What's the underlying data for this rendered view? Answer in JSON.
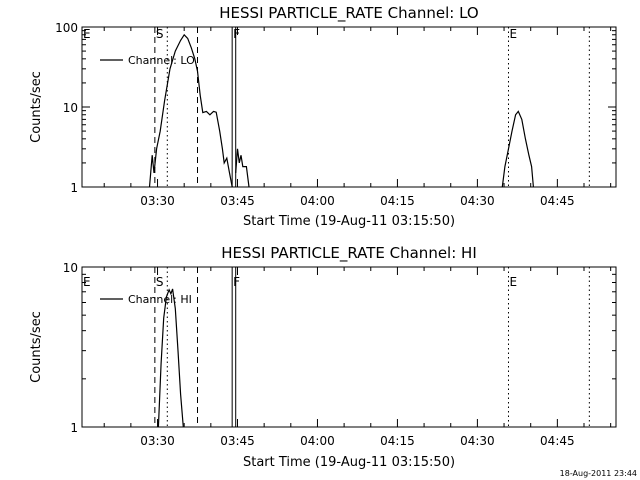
{
  "stamp": "18-Aug-2011 23:44",
  "chart_data": [
    {
      "type": "line",
      "title": "HESSI PARTICLE_RATE Channel: LO",
      "xlabel": "Start Time (19-Aug-11 03:15:50)",
      "ylabel": "Counts/sec",
      "yscale": "log",
      "ylim": [
        1,
        100
      ],
      "xlim": [
        "03:15:50",
        "04:56:00"
      ],
      "xticks": [
        "03:30",
        "03:45",
        "04:00",
        "04:15",
        "04:30",
        "04:45"
      ],
      "yticks": [
        "1",
        "10",
        "100"
      ],
      "legend": {
        "label": "Channel: LO",
        "position": "top-left"
      },
      "markers": [
        {
          "label": "E",
          "time": "03:15:50",
          "style": "none"
        },
        {
          "label": "S",
          "time": "03:29:30",
          "style": "dashed"
        },
        {
          "label": "",
          "time": "03:31:50",
          "style": "dotted"
        },
        {
          "label": "",
          "time": "03:37:30",
          "style": "dashed"
        },
        {
          "label": "F",
          "time": "03:44:00",
          "style": "solid"
        },
        {
          "label": "",
          "time": "03:44:40",
          "style": "solid"
        },
        {
          "label": "E",
          "time": "04:35:50",
          "style": "dotted"
        },
        {
          "label": "",
          "time": "04:51:00",
          "style": "dotted"
        }
      ],
      "series": [
        {
          "segments": [
            [
              [
                "03:28:30",
                1.0
              ],
              [
                "03:29:00",
                2.5
              ],
              [
                "03:29:20",
                1.5
              ],
              [
                "03:29:50",
                3.0
              ],
              [
                "03:30:30",
                5.0
              ],
              [
                "03:31:20",
                12
              ],
              [
                "03:32:20",
                30
              ],
              [
                "03:33:20",
                50
              ],
              [
                "03:34:20",
                68
              ],
              [
                "03:35:00",
                80
              ],
              [
                "03:35:40",
                72
              ],
              [
                "03:36:20",
                55
              ],
              [
                "03:37:00",
                40
              ],
              [
                "03:37:30",
                28
              ],
              [
                "03:38:00",
                14
              ],
              [
                "03:38:30",
                8.5
              ],
              [
                "03:39:10",
                8.8
              ],
              [
                "03:39:50",
                8.0
              ],
              [
                "03:40:30",
                8.8
              ],
              [
                "03:41:00",
                8.6
              ],
              [
                "03:41:40",
                5.0
              ],
              [
                "03:42:10",
                3.0
              ],
              [
                "03:42:30",
                2.0
              ],
              [
                "03:43:00",
                2.3
              ],
              [
                "03:43:30",
                1.5
              ],
              [
                "03:44:00",
                1.0
              ]
            ],
            [
              [
                "03:44:40",
                1.5
              ],
              [
                "03:45:00",
                3.0
              ],
              [
                "03:45:20",
                2.0
              ],
              [
                "03:45:40",
                2.5
              ],
              [
                "03:46:00",
                1.8
              ],
              [
                "03:46:40",
                1.8
              ],
              [
                "03:47:10",
                1.0
              ]
            ],
            [
              [
                "04:34:40",
                1.0
              ],
              [
                "04:35:10",
                1.8
              ],
              [
                "04:35:50",
                3.0
              ],
              [
                "04:36:30",
                5.0
              ],
              [
                "04:37:10",
                8.0
              ],
              [
                "04:37:40",
                8.8
              ],
              [
                "04:38:20",
                7.0
              ],
              [
                "04:39:00",
                4.0
              ],
              [
                "04:39:40",
                2.5
              ],
              [
                "04:40:10",
                1.8
              ],
              [
                "04:40:30",
                1.0
              ]
            ]
          ]
        }
      ]
    },
    {
      "type": "line",
      "title": "HESSI PARTICLE_RATE Channel: HI",
      "xlabel": "Start Time (19-Aug-11 03:15:50)",
      "ylabel": "Counts/sec",
      "yscale": "log",
      "ylim": [
        1,
        10
      ],
      "xlim": [
        "03:15:50",
        "04:56:00"
      ],
      "xticks": [
        "03:30",
        "03:45",
        "04:00",
        "04:15",
        "04:30",
        "04:45"
      ],
      "yticks": [
        "1",
        "10"
      ],
      "legend": {
        "label": "Channel: HI",
        "position": "top-left"
      },
      "markers": [
        {
          "label": "E",
          "time": "03:15:50",
          "style": "none"
        },
        {
          "label": "S",
          "time": "03:29:30",
          "style": "dashed"
        },
        {
          "label": "",
          "time": "03:31:50",
          "style": "dotted"
        },
        {
          "label": "",
          "time": "03:37:30",
          "style": "dashed"
        },
        {
          "label": "F",
          "time": "03:44:00",
          "style": "solid"
        },
        {
          "label": "",
          "time": "03:44:40",
          "style": "solid"
        },
        {
          "label": "E",
          "time": "04:35:50",
          "style": "dotted"
        },
        {
          "label": "",
          "time": "04:51:00",
          "style": "dotted"
        }
      ],
      "series": [
        {
          "segments": [
            [
              [
                "03:30:10",
                1.0
              ],
              [
                "03:30:40",
                2.5
              ],
              [
                "03:31:10",
                4.8
              ],
              [
                "03:31:40",
                6.5
              ],
              [
                "03:32:10",
                7.2
              ],
              [
                "03:32:30",
                6.8
              ],
              [
                "03:32:50",
                7.3
              ],
              [
                "03:33:20",
                5.5
              ],
              [
                "03:33:50",
                3.0
              ],
              [
                "03:34:20",
                1.6
              ],
              [
                "03:34:50",
                1.0
              ]
            ]
          ]
        }
      ]
    }
  ]
}
